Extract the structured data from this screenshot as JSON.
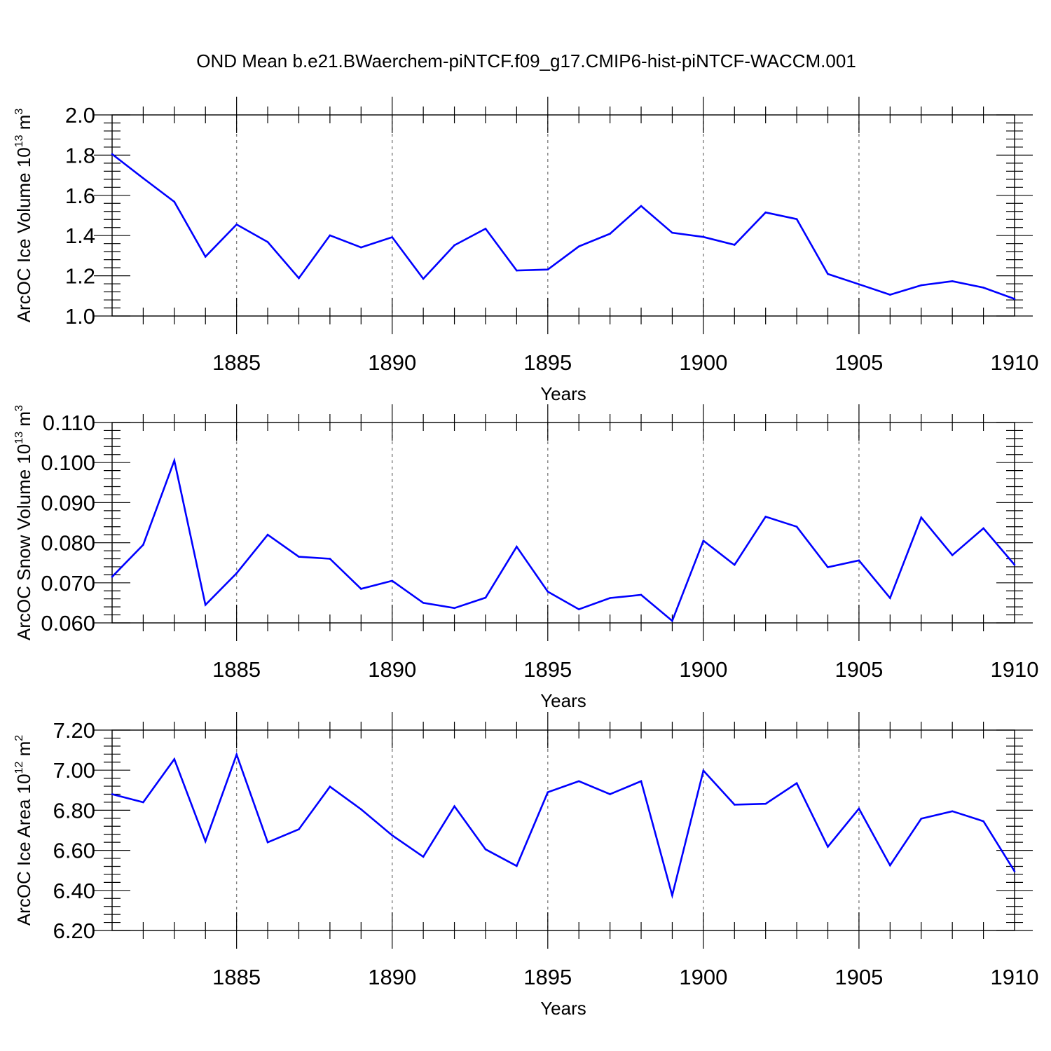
{
  "title": "OND Mean b.e21.BWaerchem-piNTCF.f09_g17.CMIP6-hist-piNTCF-WACCM.001",
  "colors": {
    "line": "#0000ff",
    "axis": "#000000",
    "grid": "#808080"
  },
  "chart_data": [
    {
      "type": "line",
      "title": "",
      "xlabel": "Years",
      "ylabel": {
        "text": "ArcOC Ice Volume 10",
        "sup": "13",
        "unit": " m",
        "unit_sup": "3"
      },
      "x": [
        1881,
        1882,
        1883,
        1884,
        1885,
        1886,
        1887,
        1888,
        1889,
        1890,
        1891,
        1892,
        1893,
        1894,
        1895,
        1896,
        1897,
        1898,
        1899,
        1900,
        1901,
        1902,
        1903,
        1904,
        1905,
        1906,
        1907,
        1908,
        1909,
        1910
      ],
      "values": [
        1.805,
        1.685,
        1.568,
        1.295,
        1.455,
        1.368,
        1.188,
        1.401,
        1.341,
        1.392,
        1.185,
        1.352,
        1.434,
        1.226,
        1.231,
        1.346,
        1.409,
        1.547,
        1.414,
        1.393,
        1.354,
        1.515,
        1.482,
        1.209,
        1.158,
        1.106,
        1.153,
        1.173,
        1.141,
        1.085
      ],
      "xlim": [
        1881,
        1910
      ],
      "ylim": [
        1.0,
        2.0
      ],
      "xticks": [
        1885,
        1890,
        1895,
        1900,
        1905,
        1910
      ],
      "yticks": [
        1.0,
        1.2,
        1.4,
        1.6,
        1.8,
        2.0
      ],
      "ytick_labels": [
        "1.0",
        "1.2",
        "1.4",
        "1.6",
        "1.8",
        "2.0"
      ]
    },
    {
      "type": "line",
      "title": "",
      "xlabel": "Years",
      "ylabel": {
        "text": "ArcOC Snow Volume 10",
        "sup": "13",
        "unit": " m",
        "unit_sup": "3"
      },
      "x": [
        1881,
        1882,
        1883,
        1884,
        1885,
        1886,
        1887,
        1888,
        1889,
        1890,
        1891,
        1892,
        1893,
        1894,
        1895,
        1896,
        1897,
        1898,
        1899,
        1900,
        1901,
        1902,
        1903,
        1904,
        1905,
        1906,
        1907,
        1908,
        1909,
        1910
      ],
      "values": [
        0.0715,
        0.0795,
        0.1005,
        0.0645,
        0.0724,
        0.082,
        0.0765,
        0.076,
        0.0685,
        0.0705,
        0.065,
        0.0637,
        0.0663,
        0.079,
        0.0678,
        0.0634,
        0.0662,
        0.067,
        0.0605,
        0.0805,
        0.0745,
        0.0865,
        0.084,
        0.0739,
        0.0756,
        0.0662,
        0.0863,
        0.0769,
        0.0836,
        0.0745
      ],
      "xlim": [
        1881,
        1910
      ],
      "ylim": [
        0.06,
        0.11
      ],
      "xticks": [
        1885,
        1890,
        1895,
        1900,
        1905,
        1910
      ],
      "yticks": [
        0.06,
        0.07,
        0.08,
        0.09,
        0.1,
        0.11
      ],
      "ytick_labels": [
        "0.060",
        "0.070",
        "0.080",
        "0.090",
        "0.100",
        "0.110"
      ]
    },
    {
      "type": "line",
      "title": "",
      "xlabel": "Years",
      "ylabel": {
        "text": "ArcOC Ice Area 10",
        "sup": "12",
        "unit": " m",
        "unit_sup": "2"
      },
      "x": [
        1881,
        1882,
        1883,
        1884,
        1885,
        1886,
        1887,
        1888,
        1889,
        1890,
        1891,
        1892,
        1893,
        1894,
        1895,
        1896,
        1897,
        1898,
        1899,
        1900,
        1901,
        1902,
        1903,
        1904,
        1905,
        1906,
        1907,
        1908,
        1909,
        1910
      ],
      "values": [
        6.88,
        6.84,
        7.055,
        6.645,
        7.078,
        6.64,
        6.705,
        6.918,
        6.805,
        6.675,
        6.568,
        6.82,
        6.605,
        6.522,
        6.89,
        6.945,
        6.88,
        6.945,
        6.375,
        6.998,
        6.828,
        6.832,
        6.935,
        6.618,
        6.808,
        6.525,
        6.758,
        6.795,
        6.745,
        6.495
      ],
      "xlim": [
        1881,
        1910
      ],
      "ylim": [
        6.2,
        7.2
      ],
      "xticks": [
        1885,
        1890,
        1895,
        1900,
        1905,
        1910
      ],
      "yticks": [
        6.2,
        6.4,
        6.6,
        6.8,
        7.0,
        7.2
      ],
      "ytick_labels": [
        "6.20",
        "6.40",
        "6.60",
        "6.80",
        "7.00",
        "7.20"
      ]
    }
  ]
}
